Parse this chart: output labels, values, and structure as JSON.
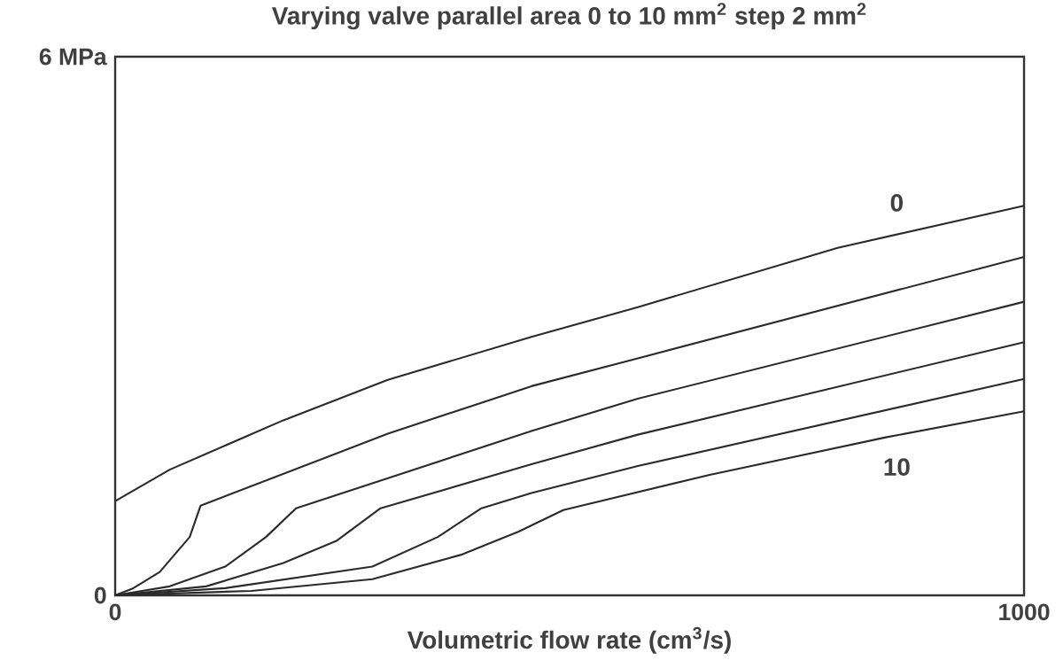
{
  "chart_data": {
    "type": "line",
    "title": "Varying valve parallel area 0 to 10 mm$^{2}$ step 2 mm$^{2}$",
    "xlabel": "Volumetric flow rate  (cm$^{3}$/s)",
    "xlim": [
      0,
      1000
    ],
    "ylim": [
      0,
      6
    ],
    "xticks": [
      0,
      1000
    ],
    "yticks": [
      0,
      {
        "value": 6,
        "label": "6 MPa"
      }
    ],
    "legend": false,
    "marker": "none",
    "line_style": "solid",
    "series": [
      {
        "name": "0",
        "color": "#2b2b2b",
        "x": [
          0,
          60,
          185,
          300,
          458,
          575,
          795,
          1000
        ],
        "values": [
          1.05,
          1.4,
          1.95,
          2.4,
          2.88,
          3.21,
          3.87,
          4.34
        ]
      },
      {
        "color": "#2b2b2b",
        "x": [
          0,
          20,
          49,
          82,
          94,
          300,
          458,
          575,
          1000
        ],
        "values": [
          0,
          0.08,
          0.26,
          0.65,
          1.0,
          1.8,
          2.33,
          2.64,
          3.77
        ]
      },
      {
        "color": "#2b2b2b",
        "x": [
          0,
          60,
          121,
          166,
          199,
          458,
          575,
          1000
        ],
        "values": [
          0,
          0.1,
          0.32,
          0.65,
          0.97,
          1.83,
          2.19,
          3.27
        ]
      },
      {
        "color": "#2b2b2b",
        "x": [
          0,
          100,
          185,
          244,
          292,
          458,
          575,
          1000
        ],
        "values": [
          0,
          0.1,
          0.36,
          0.61,
          0.97,
          1.46,
          1.79,
          2.82
        ]
      },
      {
        "color": "#2b2b2b",
        "x": [
          0,
          121,
          283,
          355,
          403,
          458,
          575,
          1000
        ],
        "values": [
          0,
          0.08,
          0.32,
          0.65,
          0.97,
          1.14,
          1.44,
          2.41
        ]
      },
      {
        "name": "10",
        "color": "#2b2b2b",
        "x": [
          0,
          150,
          283,
          380,
          444,
          493,
          653,
          848,
          1000
        ],
        "values": [
          0,
          0.05,
          0.18,
          0.45,
          0.71,
          0.95,
          1.34,
          1.76,
          2.05
        ]
      }
    ]
  }
}
